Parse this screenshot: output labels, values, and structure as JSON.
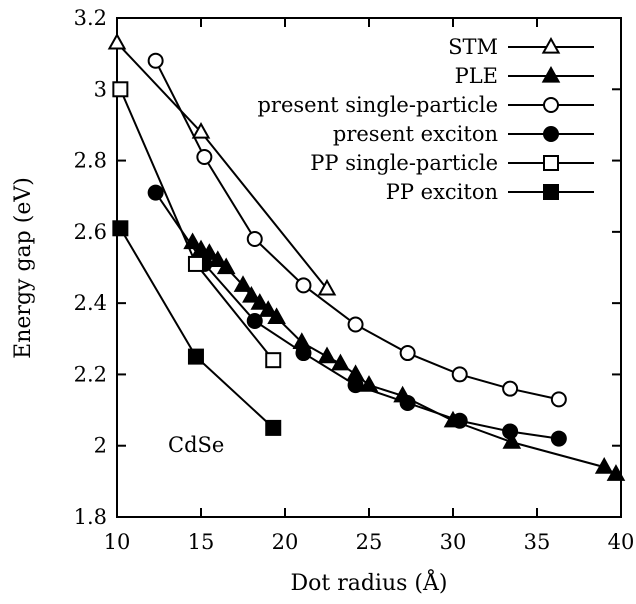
{
  "chart_data": {
    "type": "line",
    "title": "",
    "xlabel": "Dot radius (Å)",
    "ylabel": "Energy gap (eV)",
    "xlim": [
      10,
      40
    ],
    "ylim": [
      1.8,
      3.2
    ],
    "xticks": [
      10,
      15,
      20,
      25,
      30,
      35,
      40
    ],
    "yticks": [
      1.8,
      2.0,
      2.2,
      2.4,
      2.6,
      2.8,
      3.0,
      3.2
    ],
    "xtick_labels": [
      "10",
      "15",
      "20",
      "25",
      "30",
      "35",
      "40"
    ],
    "ytick_labels": [
      "1.8",
      "2",
      "2.2",
      "2.4",
      "2.6",
      "2.8",
      "3",
      "3.2"
    ],
    "grid": false,
    "legend_position": "top-right",
    "annotation": "CdSe",
    "series": [
      {
        "name": "STM",
        "marker": "triangle-open",
        "x": [
          10.0,
          15.0,
          22.5
        ],
        "y": [
          3.13,
          2.88,
          2.44
        ]
      },
      {
        "name": "PLE",
        "marker": "triangle-filled",
        "x": [
          14.5,
          15.0,
          15.5,
          16.0,
          16.5,
          17.5,
          18.0,
          18.5,
          19.0,
          19.5,
          21.0,
          22.5,
          23.3,
          24.2,
          25.0,
          27.0,
          30.0,
          33.5,
          39.0,
          39.7
        ],
        "y": [
          2.57,
          2.55,
          2.54,
          2.52,
          2.5,
          2.45,
          2.42,
          2.4,
          2.38,
          2.36,
          2.29,
          2.25,
          2.23,
          2.2,
          2.17,
          2.14,
          2.07,
          2.01,
          1.94,
          1.92
        ]
      },
      {
        "name": "present single-particle",
        "marker": "circle-open",
        "x": [
          12.3,
          15.2,
          18.2,
          21.1,
          24.2,
          27.3,
          30.4,
          33.4,
          36.3
        ],
        "y": [
          3.08,
          2.81,
          2.58,
          2.45,
          2.34,
          2.26,
          2.2,
          2.16,
          2.13
        ]
      },
      {
        "name": "present exciton",
        "marker": "circle-filled",
        "x": [
          12.3,
          15.2,
          18.2,
          21.1,
          24.2,
          27.3,
          30.4,
          33.4,
          36.3
        ],
        "y": [
          2.71,
          2.51,
          2.35,
          2.26,
          2.17,
          2.12,
          2.07,
          2.04,
          2.02
        ]
      },
      {
        "name": "PP single-particle",
        "marker": "square-open",
        "x": [
          10.2,
          14.7,
          19.3
        ],
        "y": [
          3.0,
          2.51,
          2.24
        ]
      },
      {
        "name": "PP exciton",
        "marker": "square-filled",
        "x": [
          10.2,
          14.7,
          19.3
        ],
        "y": [
          2.61,
          2.25,
          2.05
        ]
      }
    ]
  }
}
